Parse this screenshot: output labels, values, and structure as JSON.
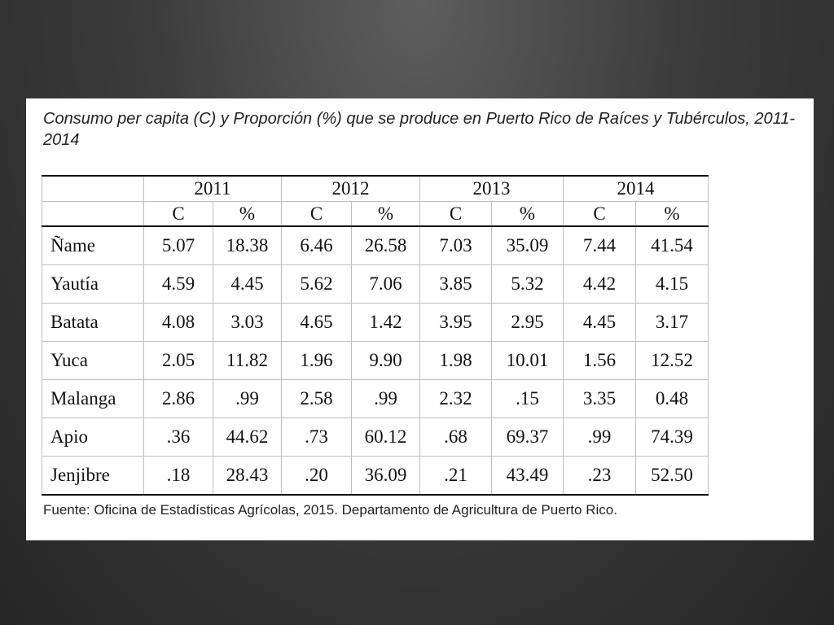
{
  "title": "Consumo per capita (C) y Proporción (%) que se produce en Puerto Rico de Raíces y Tubérculos, 2011-2014",
  "table": {
    "years": [
      "2011",
      "2012",
      "2013",
      "2014"
    ],
    "subheaders": [
      "C",
      "%",
      "C",
      "%",
      "C",
      "%",
      "C",
      "%"
    ],
    "rows": [
      {
        "name": "Ñame",
        "values": [
          "5.07",
          "18.38",
          "6.46",
          "26.58",
          "7.03",
          "35.09",
          "7.44",
          "41.54"
        ]
      },
      {
        "name": "Yautía",
        "values": [
          "4.59",
          "4.45",
          "5.62",
          "7.06",
          "3.85",
          "5.32",
          "4.42",
          "4.15"
        ]
      },
      {
        "name": "Batata",
        "values": [
          "4.08",
          "3.03",
          "4.65",
          "1.42",
          "3.95",
          "2.95",
          "4.45",
          "3.17"
        ]
      },
      {
        "name": "Yuca",
        "values": [
          "2.05",
          "11.82",
          "1.96",
          "9.90",
          "1.98",
          "10.01",
          "1.56",
          "12.52"
        ]
      },
      {
        "name": "Malanga",
        "values": [
          "2.86",
          ".99",
          "2.58",
          ".99",
          "2.32",
          ".15",
          "3.35",
          "0.48"
        ]
      },
      {
        "name": "Apio",
        "values": [
          ".36",
          "44.62",
          ".73",
          "60.12",
          ".68",
          "69.37",
          ".99",
          "74.39"
        ]
      },
      {
        "name": "Jenjibre",
        "values": [
          ".18",
          "28.43",
          ".20",
          "36.09",
          ".21",
          "43.49",
          ".23",
          "52.50"
        ]
      }
    ]
  },
  "source": "Fuente: Oficina de Estadísticas Agrícolas, 2015. Departamento de Agricultura de Puerto Rico."
}
